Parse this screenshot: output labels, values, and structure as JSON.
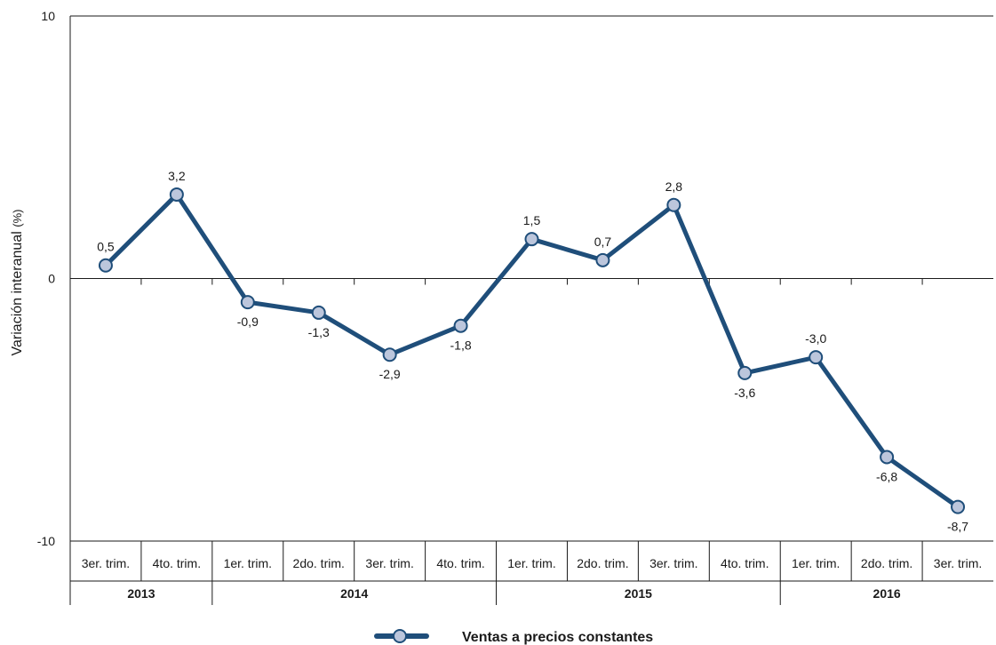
{
  "chart_data": {
    "type": "line",
    "categories": [
      "3er. trim.",
      "4to. trim.",
      "1er. trim.",
      "2do. trim.",
      "3er. trim.",
      "4to. trim.",
      "1er. trim.",
      "2do. trim.",
      "3er. trim.",
      "4to. trim.",
      "1er. trim.",
      "2do. trim.",
      "3er. trim."
    ],
    "year_groups": [
      {
        "label": "2013",
        "count": 2
      },
      {
        "label": "2014",
        "count": 4
      },
      {
        "label": "2015",
        "count": 4
      },
      {
        "label": "2016",
        "count": 3
      }
    ],
    "series": [
      {
        "name": "Ventas a precios constantes",
        "values": [
          0.5,
          3.2,
          -0.9,
          -1.3,
          -2.9,
          -1.8,
          1.5,
          0.7,
          2.8,
          -3.6,
          -3.0,
          -6.8,
          -8.7
        ],
        "labels": [
          "0,5",
          "3,2",
          "-0,9",
          "-1,3",
          "-2,9",
          "-1,8",
          "1,5",
          "0,7",
          "2,8",
          "-3,6",
          "-3,0",
          "-6,8",
          "-8,7"
        ],
        "label_pos": [
          "above",
          "above",
          "below",
          "below",
          "below",
          "below",
          "above",
          "above",
          "above",
          "below",
          "above",
          "below",
          "below"
        ]
      }
    ],
    "ylabel": "Variación interanual",
    "ylabel_unit": "(%)",
    "ylim": [
      -10,
      10
    ],
    "yticks": [
      -10,
      0,
      10
    ],
    "grid": false,
    "legend_position": "bottom-center",
    "colors": {
      "line": "#1f4e7a",
      "marker_fill": "#bcc6dc",
      "axis": "#1a1a1a"
    }
  }
}
